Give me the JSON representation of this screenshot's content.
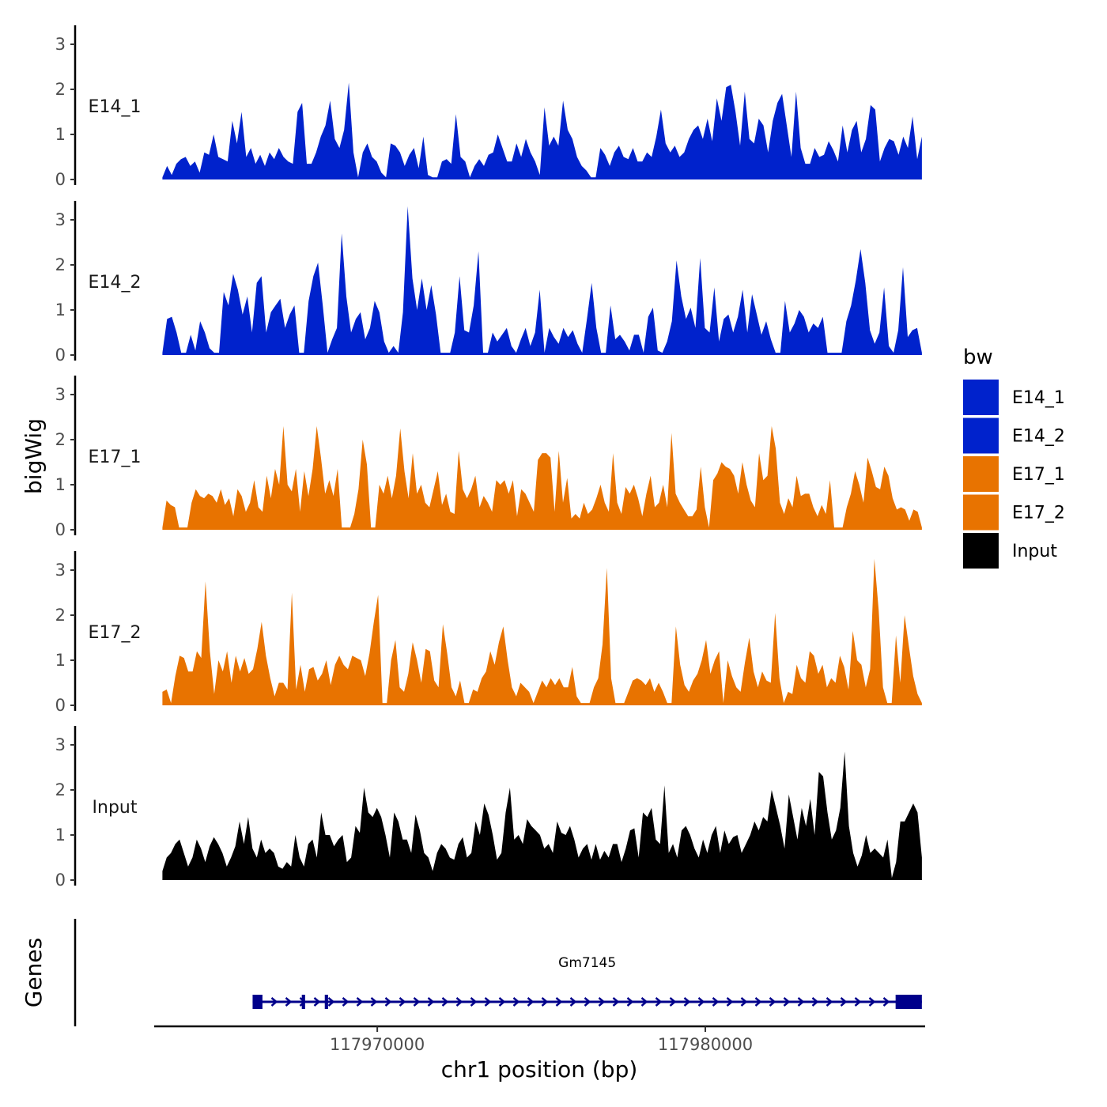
{
  "chart_data": {
    "type": "area",
    "title": "",
    "ylabel": "bigWig",
    "xlabel": "chr1 position (bp)",
    "genes_track_label": "Genes",
    "ylim": [
      0,
      3.3
    ],
    "y_ticks": [
      "0",
      "1",
      "2",
      "3"
    ],
    "x_range": [
      117963200,
      117986700
    ],
    "x_ticks": [
      117970000,
      117980000
    ],
    "x_tick_labels": [
      "117970000",
      "117980000"
    ],
    "track_x_start": 117963450,
    "track_x_end": 117986600,
    "legend": {
      "title": "bw",
      "items": [
        {
          "name": "E14_1",
          "color": "#0022cc"
        },
        {
          "name": "E14_2",
          "color": "#0022cc"
        },
        {
          "name": "E17_1",
          "color": "#e87300"
        },
        {
          "name": "E17_2",
          "color": "#e87300"
        },
        {
          "name": "Input",
          "color": "#000000"
        }
      ]
    },
    "series": [
      {
        "name": "E14_1",
        "color": "#0022cc",
        "values": [
          0.05,
          0.3,
          0.1,
          0.35,
          0.45,
          0.5,
          0.3,
          0.4,
          0.15,
          0.6,
          0.55,
          1.0,
          0.5,
          0.45,
          0.4,
          1.3,
          0.8,
          1.5,
          0.5,
          0.7,
          0.35,
          0.55,
          0.3,
          0.6,
          0.45,
          0.7,
          0.5,
          0.4,
          0.35,
          1.5,
          1.7,
          0.35,
          0.35,
          0.6,
          0.95,
          1.2,
          1.75,
          0.9,
          0.7,
          1.1,
          2.15,
          0.6,
          0.05,
          0.6,
          0.8,
          0.5,
          0.4,
          0.15,
          0.05,
          0.8,
          0.75,
          0.6,
          0.3,
          0.55,
          0.7,
          0.25,
          0.95,
          0.1,
          0.05,
          0.05,
          0.4,
          0.45,
          0.35,
          1.45,
          0.5,
          0.4,
          0.05,
          0.3,
          0.45,
          0.3,
          0.55,
          0.6,
          1.0,
          0.7,
          0.4,
          0.4,
          0.8,
          0.5,
          0.9,
          0.6,
          0.4,
          0.1,
          1.6,
          0.75,
          0.95,
          0.75,
          1.75,
          1.1,
          0.9,
          0.5,
          0.3,
          0.2,
          0.05,
          0.05,
          0.7,
          0.55,
          0.3,
          0.6,
          0.75,
          0.5,
          0.45,
          0.7,
          0.4,
          0.4,
          0.6,
          0.5,
          0.95,
          1.55,
          0.8,
          0.6,
          0.75,
          0.5,
          0.6,
          0.9,
          1.1,
          1.2,
          0.9,
          1.35,
          0.85,
          1.8,
          1.3,
          2.05,
          2.1,
          1.5,
          0.75,
          1.95,
          0.9,
          0.8,
          1.35,
          1.2,
          0.6,
          1.3,
          1.7,
          1.9,
          1.2,
          0.5,
          1.95,
          0.7,
          0.35,
          0.35,
          0.7,
          0.5,
          0.55,
          0.85,
          0.65,
          0.4,
          1.2,
          0.6,
          1.1,
          1.3,
          0.6,
          0.9,
          1.65,
          1.55,
          0.4,
          0.7,
          0.9,
          0.85,
          0.55,
          0.95,
          0.7,
          1.4,
          0.45,
          0.95
        ]
      },
      {
        "name": "E14_2",
        "color": "#0022cc",
        "values": [
          0.05,
          0.8,
          0.85,
          0.5,
          0.05,
          0.05,
          0.45,
          0.1,
          0.75,
          0.5,
          0.15,
          0.05,
          0.05,
          1.4,
          1.1,
          1.8,
          1.45,
          0.9,
          1.3,
          0.5,
          1.6,
          1.75,
          0.5,
          0.95,
          1.1,
          1.25,
          0.6,
          0.9,
          1.1,
          0.05,
          0.05,
          1.2,
          1.75,
          2.05,
          1.1,
          0.05,
          0.35,
          0.6,
          2.7,
          1.3,
          0.5,
          0.8,
          0.95,
          0.35,
          0.6,
          1.2,
          0.95,
          0.3,
          0.05,
          0.2,
          0.05,
          0.95,
          3.3,
          1.7,
          1.0,
          1.7,
          1.0,
          1.55,
          0.9,
          0.05,
          0.05,
          0.05,
          0.5,
          1.75,
          0.55,
          0.5,
          1.1,
          2.3,
          0.05,
          0.05,
          0.5,
          0.3,
          0.45,
          0.6,
          0.2,
          0.05,
          0.35,
          0.6,
          0.2,
          0.5,
          1.45,
          0.05,
          0.6,
          0.4,
          0.25,
          0.6,
          0.4,
          0.55,
          0.25,
          0.05,
          0.8,
          1.6,
          0.6,
          0.05,
          0.05,
          1.1,
          0.35,
          0.45,
          0.3,
          0.1,
          0.45,
          0.45,
          0.05,
          0.85,
          1.05,
          0.1,
          0.05,
          0.3,
          0.75,
          2.1,
          1.3,
          0.8,
          1.05,
          0.6,
          2.15,
          0.6,
          0.5,
          1.5,
          0.3,
          0.8,
          0.9,
          0.5,
          0.85,
          1.45,
          0.5,
          1.35,
          0.9,
          0.45,
          0.75,
          0.35,
          0.05,
          0.05,
          1.2,
          0.5,
          0.7,
          1.0,
          0.85,
          0.5,
          0.7,
          0.6,
          0.85,
          0.05,
          0.05,
          0.05,
          0.05,
          0.75,
          1.1,
          1.65,
          2.35,
          1.6,
          0.55,
          0.25,
          0.5,
          1.5,
          0.2,
          0.05,
          0.55,
          1.95,
          0.4,
          0.55,
          0.6,
          0.05
        ]
      },
      {
        "name": "E17_1",
        "color": "#e87300",
        "values": [
          0.05,
          0.65,
          0.55,
          0.5,
          0.05,
          0.05,
          0.05,
          0.6,
          0.9,
          0.75,
          0.7,
          0.8,
          0.75,
          0.6,
          0.9,
          0.55,
          0.7,
          0.3,
          0.9,
          0.75,
          0.4,
          0.6,
          1.1,
          0.5,
          0.4,
          1.2,
          0.7,
          1.35,
          1.0,
          2.3,
          1.0,
          0.85,
          1.35,
          0.4,
          1.3,
          0.75,
          1.35,
          2.3,
          1.6,
          0.8,
          1.1,
          0.75,
          1.35,
          0.05,
          0.05,
          0.05,
          0.35,
          0.9,
          2.0,
          1.45,
          0.05,
          0.05,
          1.0,
          0.8,
          1.2,
          0.7,
          1.2,
          2.25,
          1.3,
          0.7,
          1.7,
          0.8,
          1.0,
          0.6,
          0.5,
          0.9,
          1.3,
          0.55,
          0.8,
          0.4,
          0.35,
          1.75,
          0.9,
          0.7,
          0.9,
          1.2,
          0.5,
          0.75,
          0.6,
          0.4,
          1.1,
          1.0,
          1.1,
          0.8,
          1.1,
          0.3,
          0.9,
          0.8,
          0.6,
          0.4,
          1.55,
          1.7,
          1.7,
          1.6,
          0.4,
          1.75,
          0.6,
          1.15,
          0.25,
          0.35,
          0.25,
          0.6,
          0.35,
          0.45,
          0.7,
          1.0,
          0.6,
          0.4,
          1.7,
          0.6,
          0.35,
          0.95,
          0.8,
          1.0,
          0.7,
          0.3,
          0.8,
          1.2,
          0.5,
          0.6,
          1.0,
          0.5,
          2.15,
          0.8,
          0.6,
          0.45,
          0.3,
          0.3,
          0.45,
          1.4,
          0.5,
          0.05,
          1.1,
          1.25,
          1.5,
          1.4,
          1.35,
          1.2,
          0.8,
          1.5,
          1.0,
          0.65,
          0.5,
          1.7,
          1.1,
          1.2,
          2.3,
          1.8,
          0.6,
          0.35,
          0.7,
          0.5,
          1.2,
          0.75,
          0.8,
          0.8,
          0.5,
          0.3,
          0.55,
          0.35,
          1.1,
          0.05,
          0.05,
          0.05,
          0.5,
          0.8,
          1.3,
          1.0,
          0.6,
          1.6,
          1.3,
          0.95,
          0.9,
          1.4,
          1.2,
          0.7,
          0.45,
          0.5,
          0.45,
          0.2,
          0.45,
          0.4,
          0.05
        ]
      },
      {
        "name": "E17_2",
        "color": "#e87300",
        "values": [
          0.3,
          0.35,
          0.05,
          0.65,
          1.1,
          1.05,
          0.75,
          0.75,
          1.2,
          1.05,
          2.75,
          1.2,
          0.25,
          1.0,
          0.75,
          1.2,
          0.5,
          1.1,
          0.75,
          1.05,
          0.7,
          0.8,
          1.25,
          1.85,
          1.1,
          0.6,
          0.2,
          0.5,
          0.5,
          0.35,
          2.5,
          0.35,
          0.9,
          0.3,
          0.8,
          0.85,
          0.55,
          0.7,
          1.0,
          0.45,
          0.9,
          1.1,
          0.9,
          0.8,
          1.1,
          1.05,
          1.0,
          0.65,
          1.15,
          1.85,
          2.45,
          0.05,
          0.05,
          1.0,
          1.45,
          0.4,
          0.3,
          0.7,
          1.4,
          1.0,
          0.5,
          1.25,
          1.2,
          0.55,
          0.4,
          1.8,
          1.15,
          0.4,
          0.2,
          0.55,
          0.05,
          0.05,
          0.35,
          0.3,
          0.6,
          0.75,
          1.2,
          0.9,
          1.4,
          1.75,
          1.0,
          0.4,
          0.2,
          0.5,
          0.4,
          0.3,
          0.05,
          0.3,
          0.55,
          0.4,
          0.6,
          0.45,
          0.6,
          0.4,
          0.4,
          0.85,
          0.2,
          0.05,
          0.05,
          0.05,
          0.4,
          0.6,
          1.35,
          3.05,
          0.6,
          0.05,
          0.05,
          0.05,
          0.3,
          0.55,
          0.6,
          0.55,
          0.45,
          0.6,
          0.3,
          0.5,
          0.3,
          0.05,
          0.05,
          1.75,
          0.9,
          0.45,
          0.3,
          0.55,
          0.7,
          1.0,
          1.45,
          0.7,
          1.0,
          1.2,
          0.05,
          1.0,
          0.65,
          0.4,
          0.3,
          0.95,
          1.5,
          0.75,
          0.4,
          0.75,
          0.55,
          0.5,
          2.05,
          0.6,
          0.05,
          0.3,
          0.25,
          0.9,
          0.6,
          0.5,
          1.2,
          1.1,
          0.7,
          0.9,
          0.4,
          0.6,
          0.5,
          1.1,
          0.85,
          0.35,
          1.65,
          1.0,
          0.9,
          0.4,
          0.8,
          3.25,
          2.1,
          0.4,
          0.05,
          0.05,
          1.55,
          0.5,
          2.0,
          1.3,
          0.65,
          0.25,
          0.05
        ]
      },
      {
        "name": "Input",
        "color": "#000000",
        "values": [
          0.2,
          0.5,
          0.6,
          0.8,
          0.9,
          0.6,
          0.3,
          0.5,
          0.9,
          0.7,
          0.4,
          0.75,
          0.95,
          0.8,
          0.6,
          0.3,
          0.5,
          0.75,
          1.3,
          0.8,
          1.4,
          0.7,
          0.5,
          0.9,
          0.6,
          0.7,
          0.6,
          0.3,
          0.25,
          0.4,
          0.3,
          1.0,
          0.5,
          0.3,
          0.8,
          0.9,
          0.5,
          1.5,
          1.0,
          1.0,
          0.75,
          0.9,
          1.0,
          0.4,
          0.5,
          1.2,
          1.05,
          2.05,
          1.5,
          1.4,
          1.6,
          1.4,
          1.0,
          0.5,
          1.5,
          1.3,
          0.9,
          0.9,
          0.6,
          1.45,
          1.1,
          0.6,
          0.5,
          0.2,
          0.6,
          0.8,
          0.7,
          0.5,
          0.45,
          0.8,
          0.95,
          0.5,
          0.6,
          1.3,
          1.0,
          1.7,
          1.45,
          1.0,
          0.45,
          0.6,
          1.5,
          2.05,
          0.9,
          1.0,
          0.8,
          1.35,
          1.2,
          1.1,
          1.0,
          0.7,
          0.8,
          0.6,
          1.3,
          1.05,
          1.0,
          1.2,
          0.9,
          0.5,
          0.7,
          0.8,
          0.45,
          0.8,
          0.45,
          0.65,
          0.5,
          0.8,
          0.8,
          0.4,
          0.7,
          1.1,
          1.15,
          0.5,
          1.5,
          1.4,
          1.6,
          0.9,
          0.8,
          2.1,
          0.6,
          0.8,
          0.5,
          1.1,
          1.2,
          1.0,
          0.7,
          0.5,
          0.9,
          0.6,
          1.0,
          1.2,
          0.6,
          1.1,
          0.8,
          0.95,
          1.0,
          0.6,
          0.8,
          1.0,
          1.3,
          1.1,
          1.4,
          1.3,
          2.0,
          1.6,
          1.2,
          0.7,
          1.9,
          1.4,
          0.9,
          1.6,
          1.2,
          1.8,
          1.0,
          2.4,
          2.3,
          1.5,
          0.9,
          1.1,
          1.6,
          2.85,
          1.2,
          0.6,
          0.3,
          0.55,
          1.0,
          0.6,
          0.7,
          0.6,
          0.5,
          0.9,
          0.05,
          0.4,
          1.3,
          1.3,
          1.5,
          1.7,
          1.5,
          0.5
        ]
      }
    ],
    "genes": [
      {
        "name": "Gm7145",
        "start": 117966200,
        "end": 117986600,
        "strand": "+",
        "exons": [
          [
            117966200,
            117966500
          ],
          [
            117967700,
            117967800
          ],
          [
            117968400,
            117968500
          ],
          [
            117985800,
            117986600
          ]
        ]
      }
    ]
  }
}
